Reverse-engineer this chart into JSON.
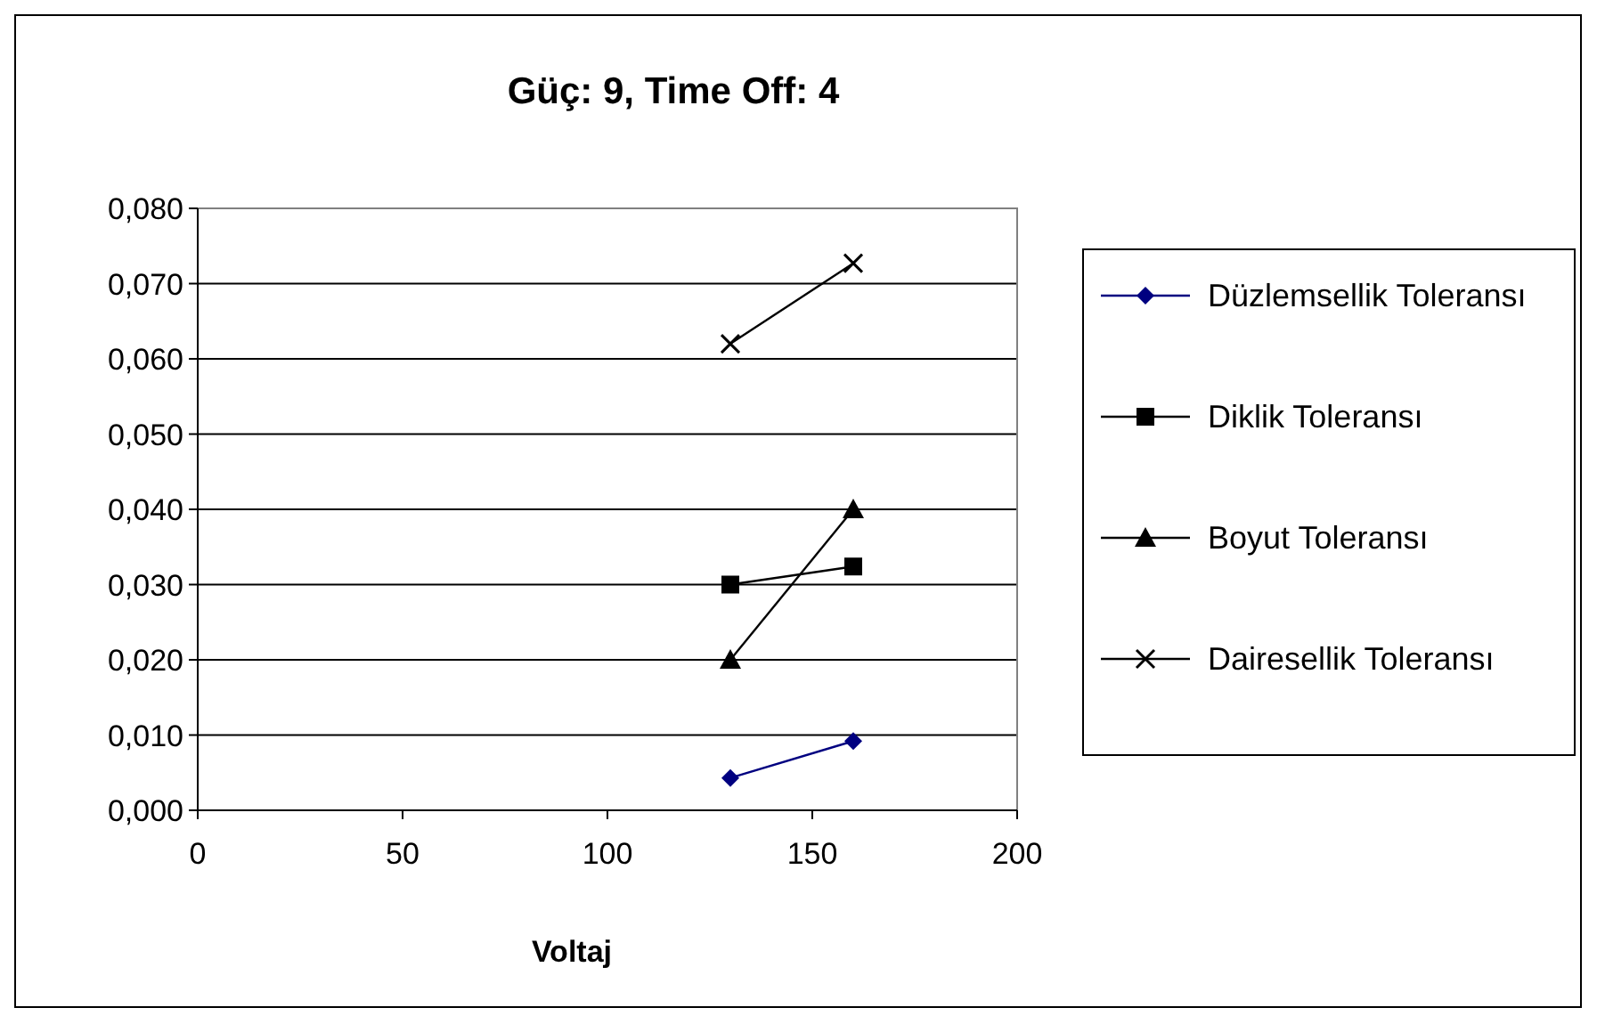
{
  "chart_data": {
    "type": "line",
    "title": "Güç: 9, Time Off: 4",
    "xlabel": "Voltaj",
    "x": [
      130,
      160
    ],
    "series": [
      {
        "name": "Düzlemsellik Toleransı",
        "color": "#000080",
        "marker": "diamond",
        "values": [
          0.0043,
          0.0092
        ]
      },
      {
        "name": "Diklik Toleransı",
        "color": "#000000",
        "marker": "square",
        "values": [
          0.03,
          0.0324
        ]
      },
      {
        "name": "Boyut Toleransı",
        "color": "#000000",
        "marker": "triangle",
        "values": [
          0.02,
          0.04
        ]
      },
      {
        "name": "Dairesellik Toleransı",
        "color": "#000000",
        "marker": "cross",
        "values": [
          0.062,
          0.0727
        ]
      }
    ],
    "xlim": [
      0,
      200
    ],
    "xticks": [
      0,
      50,
      100,
      150,
      200
    ],
    "ylim": [
      0,
      0.08
    ],
    "yticks": [
      {
        "value": 0,
        "label": "0,000"
      },
      {
        "value": 0.01,
        "label": "0,010"
      },
      {
        "value": 0.02,
        "label": "0,020"
      },
      {
        "value": 0.03,
        "label": "0,030"
      },
      {
        "value": 0.04,
        "label": "0,040"
      },
      {
        "value": 0.05,
        "label": "0,050"
      },
      {
        "value": 0.06,
        "label": "0,060"
      },
      {
        "value": 0.07,
        "label": "0,070"
      },
      {
        "value": 0.08,
        "label": "0,080"
      }
    ],
    "grid": "y",
    "legend": "right",
    "line_style": "solid"
  }
}
